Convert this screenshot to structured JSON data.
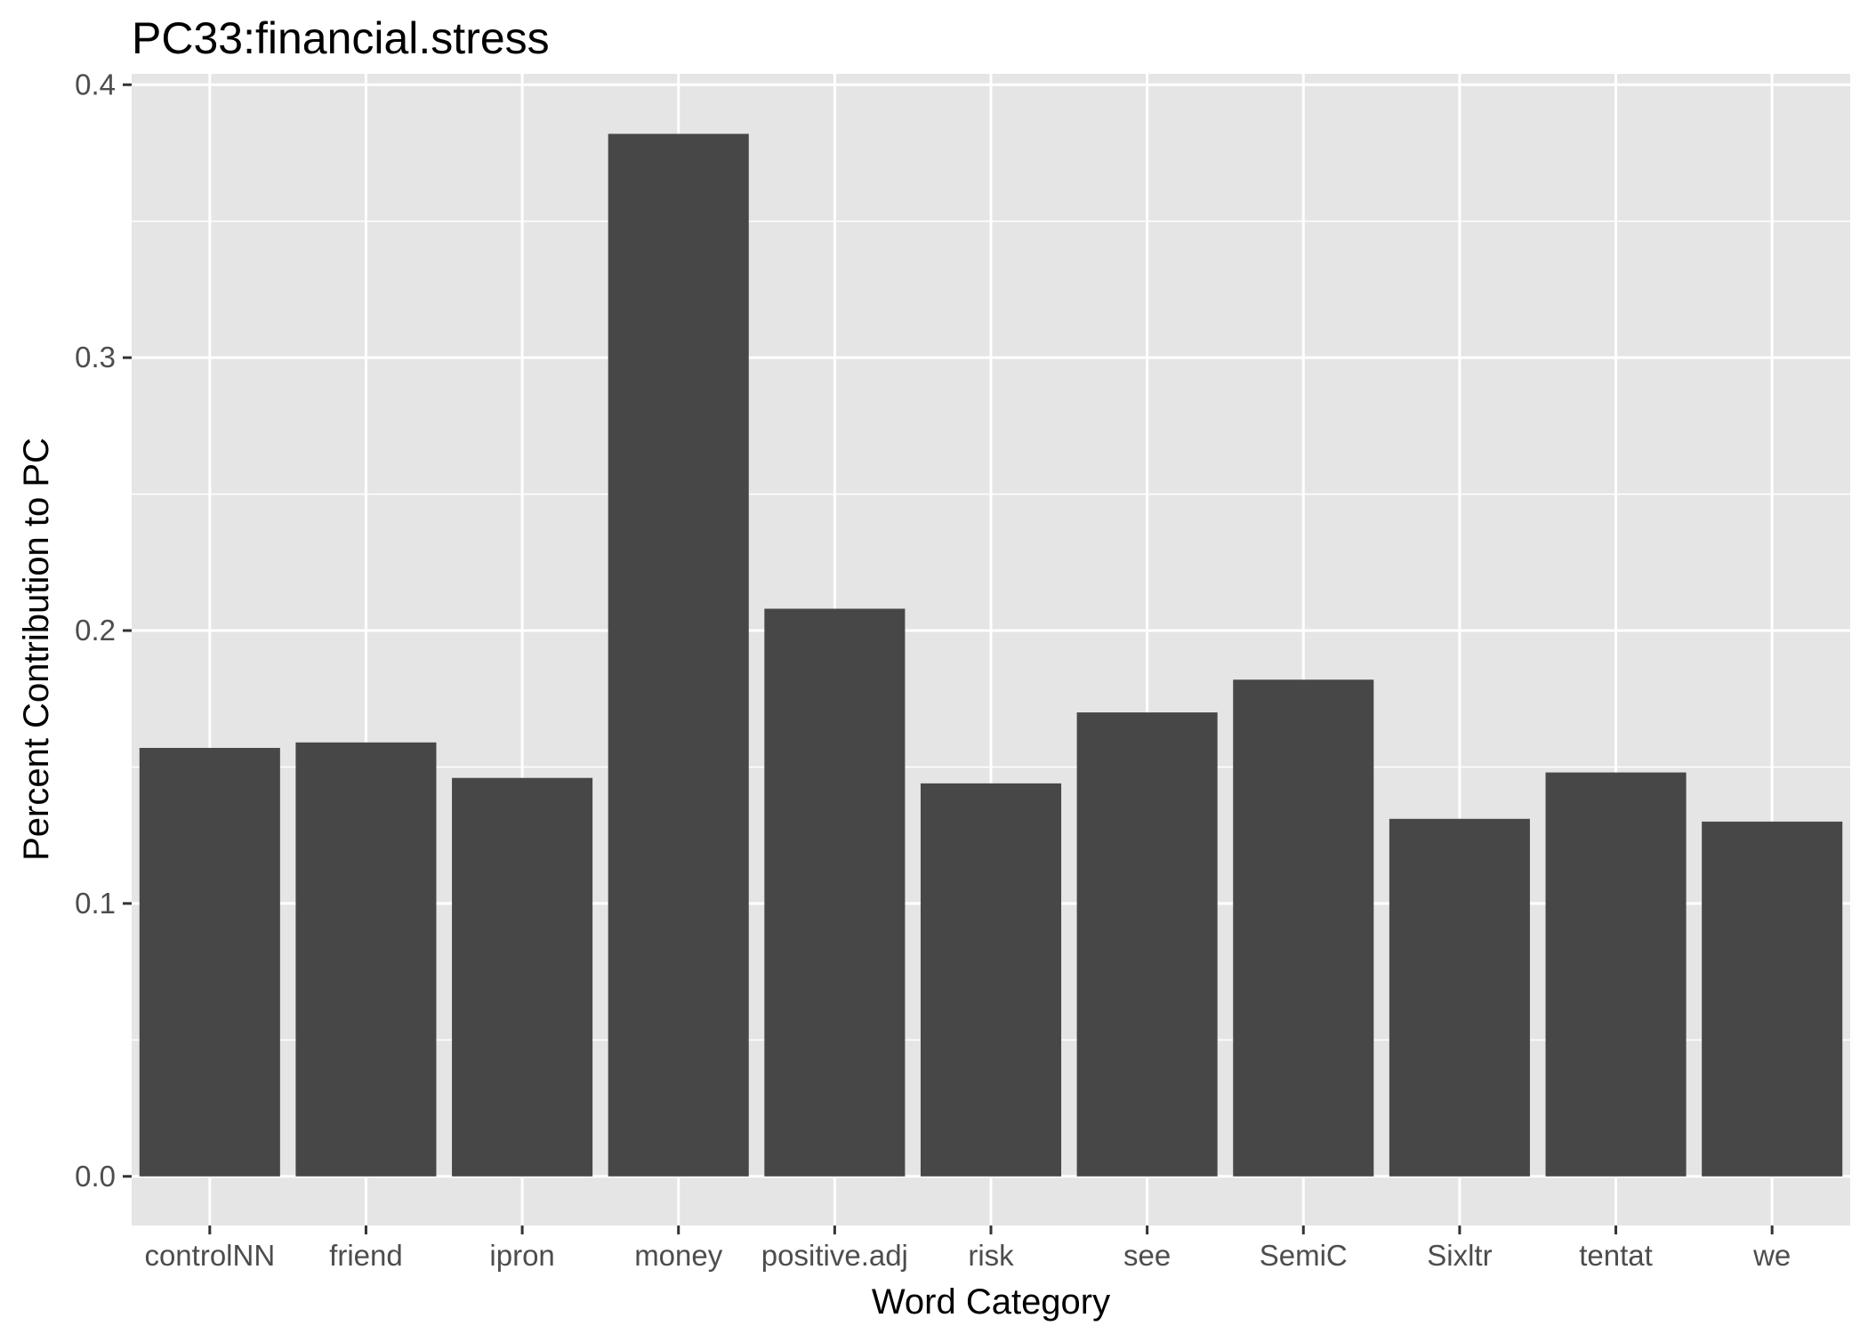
{
  "chart_data": {
    "type": "bar",
    "title": "PC33:financial.stress",
    "xlabel": "Word Category",
    "ylabel": "Percent Contribution to PC",
    "categories": [
      "controlNN",
      "friend",
      "ipron",
      "money",
      "positive.adj",
      "risk",
      "see",
      "SemiC",
      "Sixltr",
      "tentat",
      "we"
    ],
    "values": [
      0.157,
      0.159,
      0.146,
      0.382,
      0.208,
      0.144,
      0.17,
      0.182,
      0.131,
      0.148,
      0.13
    ],
    "ylim": [
      -0.018,
      0.404
    ],
    "yticks": [
      0.0,
      0.1,
      0.2,
      0.3,
      0.4
    ],
    "ytick_labels": [
      "0.0",
      "0.1",
      "0.2",
      "0.3",
      "0.4"
    ],
    "grid": true,
    "legend": "none",
    "colors": {
      "panel": "#e5e5e5",
      "grid": "#ffffff",
      "bar": "#474747",
      "tick": "#333333"
    }
  }
}
